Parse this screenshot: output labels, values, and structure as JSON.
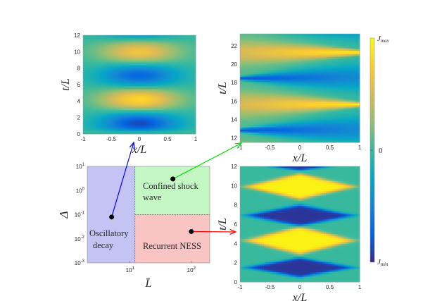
{
  "chart_data": [
    {
      "type": "heatmap",
      "panel": "top-left",
      "xlabel": "x/L",
      "ylabel": "t/L",
      "xlim": [
        -1,
        1
      ],
      "ylim": [
        0,
        12
      ],
      "xticks": [
        "-1",
        "-0.5",
        "0",
        "0.5",
        "1"
      ],
      "yticks": [
        "0",
        "2",
        "4",
        "6",
        "8",
        "10",
        "12"
      ],
      "pattern": "oscillatory decay: alternating bands, min near t/L≈1.3, max ≈4.2, min ≈7.1, max ≈10"
    },
    {
      "type": "heatmap",
      "panel": "top-right",
      "xlabel": "x/L",
      "ylabel": "t/L",
      "xlim": [
        -1,
        1
      ],
      "ylim": [
        11.5,
        23.3
      ],
      "xticks": [
        "-1",
        "-0.5",
        "0",
        "0.5",
        "1"
      ],
      "yticks": [
        "12",
        "14",
        "16",
        "18",
        "20",
        "22"
      ],
      "pattern": "confined shock wave: max wedges tipped at x/L=1 (t/L≈15.6, 21.3), min wedges tipped at x/L=-1 (t/L≈12.8, 18.4)"
    },
    {
      "type": "heatmap",
      "panel": "bottom-right",
      "xlabel": "x/L",
      "ylabel": "t/L",
      "xlim": [
        -1,
        1
      ],
      "ylim": [
        0,
        12
      ],
      "xticks": [
        "-1",
        "-0.5",
        "0",
        "0.5",
        "1"
      ],
      "yticks": [
        "0",
        "2",
        "4",
        "6",
        "8",
        "10",
        "12"
      ],
      "pattern": "recurrent NESS: diamond-shaped plateaus, min at t/L≈1.5, 6.8, 12; max at t/L≈4.2, 9.9"
    },
    {
      "type": "phase-diagram",
      "panel": "bottom-left",
      "xlabel": "L̄",
      "ylabel": "Δ",
      "xscale": "log",
      "yscale": "log",
      "xlim": [
        2,
        200
      ],
      "ylim": [
        0.001,
        10
      ],
      "xticks": [
        {
          "v": 10,
          "label": "10",
          "exp": "1"
        },
        {
          "v": 100,
          "label": "10",
          "exp": "2"
        }
      ],
      "yticks": [
        {
          "v": 0.001,
          "label": "10",
          "exp": "-3"
        },
        {
          "v": 0.01,
          "label": "10",
          "exp": "-2"
        },
        {
          "v": 0.1,
          "label": "10",
          "exp": "-1"
        },
        {
          "v": 1,
          "label": "10",
          "exp": "0"
        },
        {
          "v": 10,
          "label": "10",
          "exp": "1"
        }
      ],
      "boundaries": {
        "L_bar": 12,
        "Delta": 0.1
      },
      "regions": [
        {
          "name": "Oscillatory",
          "name2": "decay",
          "color": "#c4c4f4"
        },
        {
          "name": "Confined shock",
          "name2": "wave",
          "color": "#c4f7c4"
        },
        {
          "name": "Recurrent NESS",
          "color": "#f8c4c4"
        }
      ],
      "points": [
        {
          "L_bar": 5,
          "Delta": 0.08,
          "arrow_color": "#0000ff",
          "target": "top-left"
        },
        {
          "L_bar": 50,
          "Delta": 3,
          "arrow_color": "#00e000",
          "target": "top-right"
        },
        {
          "L_bar": 100,
          "Delta": 0.02,
          "arrow_color": "#ff0000",
          "target": "bottom-right"
        }
      ]
    }
  ],
  "colorbar": {
    "max_label": "J",
    "max_sub": "max",
    "zero_label": "0",
    "min_label": "J",
    "min_sub": "min",
    "colormap": "parula"
  }
}
